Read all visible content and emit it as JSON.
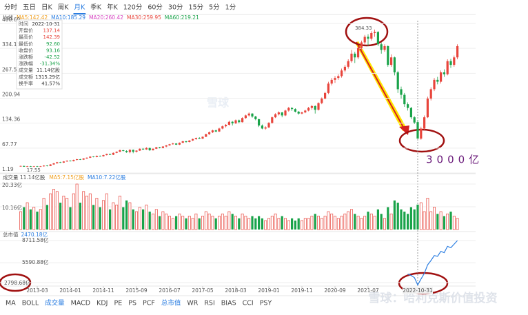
{
  "toolbar": {
    "tabs": [
      "分时",
      "五日",
      "日K",
      "周K",
      "月K",
      "季K",
      "年K",
      "120分",
      "60分",
      "30分",
      "15分",
      "5分",
      "1分"
    ],
    "active": 4
  },
  "indicators": {
    "tabs": [
      "MA",
      "BOLL",
      "成交量",
      "MACD",
      "KDJ",
      "PE",
      "PS",
      "PCF",
      "总市值",
      "WR",
      "RSI",
      "BIAS",
      "CCI",
      "PSY"
    ],
    "active": [
      2,
      8
    ]
  },
  "ma_legend": {
    "title": "均线",
    "items": [
      {
        "text": "MA5:142.42",
        "color": "#f0a020"
      },
      {
        "text": "MA10:185.29",
        "color": "#2a7de1"
      },
      {
        "text": "MA20:260.42",
        "color": "#d63fc0"
      },
      {
        "text": "MA30:259.95",
        "color": "#e8453c"
      },
      {
        "text": "MA60:219.21",
        "color": "#1aa34a"
      }
    ]
  },
  "tooltip": {
    "rows": [
      {
        "label": "时间",
        "value": "2022-10-31",
        "color": "#333"
      },
      {
        "label": "开盘价",
        "value": "137.14",
        "color": "#e8453c"
      },
      {
        "label": "最高价",
        "value": "142.39",
        "color": "#e8453c"
      },
      {
        "label": "最低价",
        "value": "92.60",
        "color": "#1aa34a"
      },
      {
        "label": "收盘价",
        "value": "93.16",
        "color": "#1aa34a"
      },
      {
        "label": "涨跌额",
        "value": "-42.52",
        "color": "#1aa34a"
      },
      {
        "label": "涨跌幅",
        "value": "-31.34%",
        "color": "#1aa34a"
      },
      {
        "label": "成交量",
        "value": "11.14亿股",
        "color": "#333"
      },
      {
        "label": "成交额",
        "value": "1315.29亿",
        "color": "#333"
      },
      {
        "label": "换手率",
        "value": "41.57%",
        "color": "#333"
      }
    ]
  },
  "annotation": "3000亿",
  "watermark": {
    "center": "雪球",
    "corner": "雪球：哈利克斯价值投资"
  },
  "chart_data": {
    "type": "candlestick",
    "up_color": "#e8453c",
    "down_color": "#1aa34a",
    "ylim": [
      1.19,
      400.69
    ],
    "yticks": [
      1.19,
      67.77,
      134.36,
      200.94,
      267.52,
      334.11,
      400.69
    ],
    "xticks": [
      {
        "value": 5,
        "label": "2013-03"
      },
      {
        "value": 15,
        "label": "2014-01"
      },
      {
        "value": 25,
        "label": "2014-11"
      },
      {
        "value": 35,
        "label": "2015-09"
      },
      {
        "value": 45,
        "label": "2016-07"
      },
      {
        "value": 55,
        "label": "2017-05"
      },
      {
        "value": 65,
        "label": "2018-03"
      },
      {
        "value": 75,
        "label": "2019-01"
      },
      {
        "value": 85,
        "label": "2019-11"
      },
      {
        "value": 95,
        "label": "2020-09"
      },
      {
        "value": 105,
        "label": "2021-07"
      }
    ],
    "candles": [
      [
        19,
        21,
        18,
        20
      ],
      [
        20,
        21,
        17.55,
        18
      ],
      [
        18,
        20,
        17.6,
        19
      ],
      [
        19,
        20,
        17.8,
        18
      ],
      [
        18,
        20,
        17.8,
        19
      ],
      [
        19,
        20,
        17.7,
        18
      ],
      [
        18,
        20,
        17.9,
        19
      ],
      [
        19,
        22,
        18.5,
        21
      ],
      [
        21,
        22,
        19,
        20
      ],
      [
        20,
        25,
        19.5,
        24
      ],
      [
        24,
        28,
        23,
        27
      ],
      [
        27,
        31,
        26,
        30
      ],
      [
        30,
        31,
        28,
        29
      ],
      [
        29,
        33,
        28,
        32
      ],
      [
        32,
        35,
        31,
        34
      ],
      [
        34,
        35,
        32,
        33
      ],
      [
        33,
        37,
        32,
        36
      ],
      [
        36,
        39,
        35,
        38
      ],
      [
        38,
        39,
        36,
        37
      ],
      [
        37,
        41,
        36,
        40
      ],
      [
        40,
        43,
        39,
        42
      ],
      [
        42,
        46,
        41,
        45
      ],
      [
        45,
        46,
        43,
        44
      ],
      [
        44,
        48,
        43,
        47
      ],
      [
        47,
        48,
        45,
        46
      ],
      [
        46,
        50,
        45,
        49
      ],
      [
        49,
        53,
        48,
        52
      ],
      [
        52,
        53,
        49,
        50
      ],
      [
        50,
        56,
        49,
        55
      ],
      [
        55,
        59,
        54,
        58
      ],
      [
        58,
        64,
        57,
        62
      ],
      [
        62,
        63,
        59,
        60
      ],
      [
        60,
        62,
        55,
        57
      ],
      [
        57,
        65,
        54,
        63
      ],
      [
        63,
        64,
        54,
        58
      ],
      [
        58,
        62,
        56,
        61
      ],
      [
        61,
        67,
        60,
        66
      ],
      [
        66,
        68,
        63,
        64
      ],
      [
        64,
        70,
        63,
        68
      ],
      [
        68,
        69,
        60,
        62
      ],
      [
        62,
        67,
        61,
        66
      ],
      [
        66,
        71,
        65,
        70
      ],
      [
        70,
        71,
        67,
        68
      ],
      [
        68,
        73,
        67,
        72
      ],
      [
        72,
        76,
        70,
        75
      ],
      [
        75,
        79,
        74,
        78
      ],
      [
        78,
        82,
        77,
        80
      ],
      [
        80,
        81,
        76,
        77
      ],
      [
        77,
        83,
        76,
        82
      ],
      [
        82,
        87,
        81,
        86
      ],
      [
        86,
        87,
        82,
        84
      ],
      [
        84,
        89,
        83,
        88
      ],
      [
        88,
        93,
        87,
        92
      ],
      [
        92,
        96,
        90,
        95
      ],
      [
        95,
        97,
        92,
        93
      ],
      [
        93,
        99,
        92,
        98
      ],
      [
        98,
        106,
        97,
        105
      ],
      [
        105,
        112,
        103,
        110
      ],
      [
        110,
        117,
        108,
        115
      ],
      [
        115,
        117,
        110,
        112
      ],
      [
        112,
        122,
        111,
        120
      ],
      [
        120,
        128,
        118,
        126
      ],
      [
        126,
        132,
        123,
        130
      ],
      [
        130,
        141,
        128,
        138
      ],
      [
        138,
        140,
        128,
        134
      ],
      [
        134,
        144,
        132,
        142
      ],
      [
        142,
        144,
        134,
        137
      ],
      [
        137,
        150,
        136,
        148
      ],
      [
        148,
        157,
        146,
        155
      ],
      [
        155,
        163,
        152,
        160
      ],
      [
        160,
        161,
        149,
        152
      ],
      [
        152,
        154,
        142,
        145
      ],
      [
        145,
        146,
        124,
        128
      ],
      [
        128,
        131,
        118,
        120
      ],
      [
        120,
        126,
        117,
        123
      ],
      [
        123,
        137,
        121,
        135
      ],
      [
        135,
        152,
        133,
        150
      ],
      [
        150,
        161,
        148,
        158
      ],
      [
        158,
        166,
        155,
        163
      ],
      [
        163,
        164,
        150,
        155
      ],
      [
        155,
        170,
        153,
        168
      ],
      [
        168,
        178,
        165,
        175
      ],
      [
        175,
        177,
        167,
        172
      ],
      [
        172,
        174,
        163,
        165
      ],
      [
        165,
        167,
        157,
        160
      ],
      [
        160,
        165,
        158,
        163
      ],
      [
        163,
        170,
        161,
        168
      ],
      [
        168,
        178,
        166,
        175
      ],
      [
        175,
        183,
        170,
        180
      ],
      [
        180,
        182,
        160,
        170
      ],
      [
        170,
        190,
        168,
        188
      ],
      [
        188,
        203,
        185,
        200
      ],
      [
        200,
        218,
        198,
        215
      ],
      [
        215,
        245,
        212,
        240
      ],
      [
        240,
        255,
        235,
        250
      ],
      [
        250,
        260,
        242,
        255
      ],
      [
        255,
        265,
        250,
        260
      ],
      [
        260,
        280,
        256,
        275
      ],
      [
        275,
        290,
        270,
        285
      ],
      [
        285,
        305,
        280,
        300
      ],
      [
        300,
        330,
        296,
        320
      ],
      [
        320,
        325,
        295,
        310
      ],
      [
        310,
        340,
        305,
        335
      ],
      [
        335,
        355,
        330,
        350
      ],
      [
        350,
        370,
        345,
        365
      ],
      [
        365,
        372,
        340,
        360
      ],
      [
        360,
        380,
        355,
        375
      ],
      [
        375,
        384.33,
        365,
        378
      ],
      [
        378,
        380,
        340,
        345
      ],
      [
        345,
        350,
        320,
        330
      ],
      [
        330,
        345,
        325,
        340
      ],
      [
        340,
        342,
        285,
        290
      ],
      [
        290,
        318,
        285,
        310
      ],
      [
        310,
        312,
        262,
        270
      ],
      [
        270,
        274,
        215,
        225
      ],
      [
        225,
        232,
        200,
        210
      ],
      [
        210,
        215,
        178,
        185
      ],
      [
        185,
        190,
        168,
        175
      ],
      [
        175,
        178,
        145,
        150
      ],
      [
        150,
        153,
        132,
        136
      ],
      [
        137.14,
        142.39,
        92.6,
        93.16
      ],
      [
        93,
        125,
        90,
        120
      ],
      [
        120,
        155,
        116,
        150
      ],
      [
        150,
        205,
        148,
        200
      ],
      [
        200,
        230,
        195,
        225
      ],
      [
        225,
        255,
        220,
        250
      ],
      [
        250,
        258,
        238,
        245
      ],
      [
        245,
        275,
        240,
        270
      ],
      [
        270,
        278,
        258,
        265
      ],
      [
        265,
        305,
        262,
        300
      ],
      [
        300,
        306,
        282,
        290
      ],
      [
        290,
        315,
        285,
        310
      ],
      [
        310,
        345,
        305,
        340
      ]
    ],
    "volume": {
      "title": "成交量 11.14亿股",
      "legend": [
        {
          "text": "MA5:7.15亿股",
          "color": "#f0a020"
        },
        {
          "text": "MA10:7.22亿股",
          "color": "#2a7de1"
        }
      ],
      "ylim": [
        0,
        20.33
      ],
      "yticks": [
        {
          "value": 10.16,
          "label": "10.16亿"
        },
        {
          "value": 20.33,
          "label": "20.33亿"
        }
      ],
      "values": [
        8,
        10,
        12,
        9,
        10,
        8,
        9,
        14,
        11,
        16,
        18,
        17,
        12,
        15,
        14,
        10,
        16,
        20.33,
        12,
        17,
        15,
        16,
        11,
        14,
        10,
        13,
        16,
        9,
        12,
        11,
        15,
        10,
        13,
        12,
        9,
        8,
        10,
        9,
        11,
        8,
        7,
        9,
        6,
        8,
        7,
        6,
        5,
        6,
        7,
        6,
        5,
        6,
        5,
        7,
        5,
        6,
        8,
        7,
        6,
        5,
        6,
        7,
        6,
        8,
        7,
        6,
        5,
        7,
        6,
        5,
        6,
        5,
        6,
        5,
        4,
        5,
        6,
        7,
        5,
        6,
        5,
        4,
        5,
        4,
        5,
        4,
        5,
        5,
        6,
        7,
        6,
        5,
        6,
        8,
        7,
        6,
        5,
        6,
        7,
        8,
        9,
        7,
        6,
        5,
        6,
        8,
        7,
        6,
        9,
        7,
        5,
        10,
        7,
        13,
        12,
        9,
        8,
        7,
        10,
        9,
        11.14,
        12,
        8,
        14,
        8,
        10,
        7,
        8,
        6,
        7,
        8,
        6,
        5
      ]
    },
    "market_cap": {
      "title": "总市值",
      "current": "2470.18亿",
      "color": "#2a7de1",
      "ylim": [
        2798.68,
        8711.58
      ],
      "yticks": [
        {
          "value": 2798.68,
          "label": "2798.68亿"
        },
        {
          "value": 5590.88,
          "label": "5590.88亿"
        },
        {
          "value": 8711.58,
          "label": "8711.58亿"
        }
      ],
      "values": [
        null,
        null,
        null,
        null,
        null,
        null,
        null,
        null,
        null,
        null,
        null,
        null,
        null,
        null,
        null,
        null,
        null,
        null,
        null,
        null,
        null,
        null,
        null,
        null,
        null,
        null,
        null,
        null,
        null,
        null,
        null,
        null,
        null,
        null,
        null,
        null,
        null,
        null,
        null,
        null,
        null,
        null,
        null,
        null,
        null,
        null,
        null,
        null,
        null,
        null,
        null,
        null,
        null,
        null,
        null,
        null,
        null,
        null,
        null,
        null,
        null,
        null,
        null,
        null,
        null,
        null,
        null,
        null,
        null,
        null,
        null,
        null,
        null,
        null,
        null,
        null,
        null,
        null,
        null,
        null,
        null,
        null,
        null,
        null,
        null,
        null,
        null,
        null,
        null,
        null,
        null,
        null,
        null,
        null,
        null,
        null,
        null,
        null,
        null,
        null,
        null,
        null,
        null,
        null,
        null,
        null,
        null,
        null,
        null,
        null,
        null,
        null,
        null,
        null,
        null,
        null,
        null,
        4000,
        3800,
        3500,
        2470.18,
        3300,
        4100,
        5300,
        5900,
        6600,
        6500,
        7200,
        7000,
        7900,
        7700,
        8200,
        8711.58
      ]
    }
  }
}
